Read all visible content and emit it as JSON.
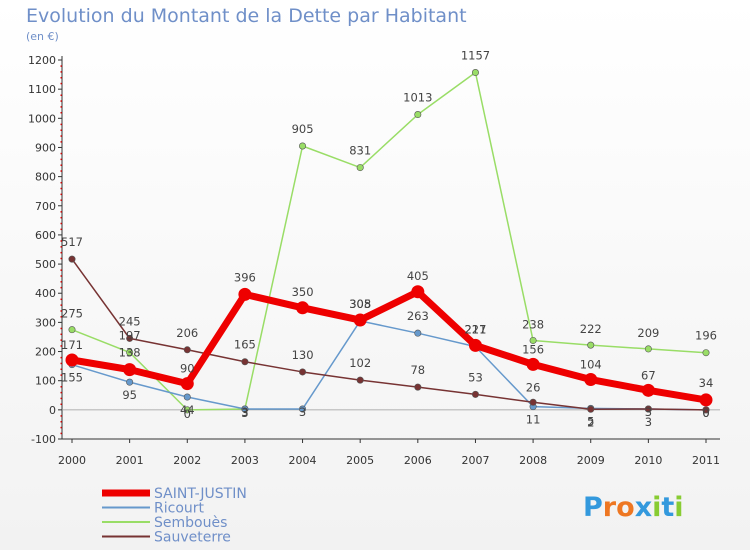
{
  "chart_data": {
    "type": "line",
    "title": "Evolution du Montant de la Dette par Habitant",
    "subtitle": "(en €)",
    "x": [
      "2000",
      "2001",
      "2002",
      "2003",
      "2004",
      "2005",
      "2006",
      "2007",
      "2008",
      "2009",
      "2010",
      "2011"
    ],
    "ylim": [
      -100,
      1200
    ],
    "yticks": [
      "-100",
      "0",
      "100",
      "200",
      "300",
      "400",
      "500",
      "600",
      "700",
      "800",
      "900",
      "1000",
      "1100",
      "1200"
    ],
    "grid": false,
    "legend_position": "bottom-left",
    "series": [
      {
        "name": "SAINT-JUSTIN",
        "color": "#ee0000",
        "values": [
          171,
          138,
          90,
          396,
          350,
          308,
          405,
          221,
          156,
          104,
          67,
          34
        ],
        "labels": [
          "171",
          "138",
          "90",
          "396",
          "350",
          "308",
          "405",
          "221",
          "156",
          "104",
          "67",
          "34"
        ]
      },
      {
        "name": "Ricourt",
        "color": "#6699cc",
        "values": [
          155,
          95,
          44,
          3,
          3,
          305,
          263,
          217,
          11,
          5,
          3,
          0
        ],
        "labels": [
          "155",
          "95",
          "44",
          "3",
          "3",
          "305",
          "263",
          "217",
          "11",
          "5",
          "3",
          "0"
        ]
      },
      {
        "name": "Sembouès",
        "color": "#99dd66",
        "values": [
          275,
          197,
          0,
          3,
          905,
          831,
          1013,
          1157,
          238,
          222,
          209,
          196
        ],
        "labels": [
          "275",
          "197",
          "0",
          "3",
          "905",
          "831",
          "1013",
          "1157",
          "238",
          "222",
          "209",
          "196"
        ]
      },
      {
        "name": "Sauveterre",
        "color": "#773333",
        "values": [
          517,
          245,
          206,
          165,
          130,
          102,
          78,
          53,
          26,
          2,
          3,
          0
        ],
        "labels": [
          "517",
          "245",
          "206",
          "165",
          "130",
          "102",
          "78",
          "53",
          "26",
          "2",
          "3",
          "0"
        ]
      }
    ]
  },
  "logo": {
    "text": "Proxiti"
  }
}
